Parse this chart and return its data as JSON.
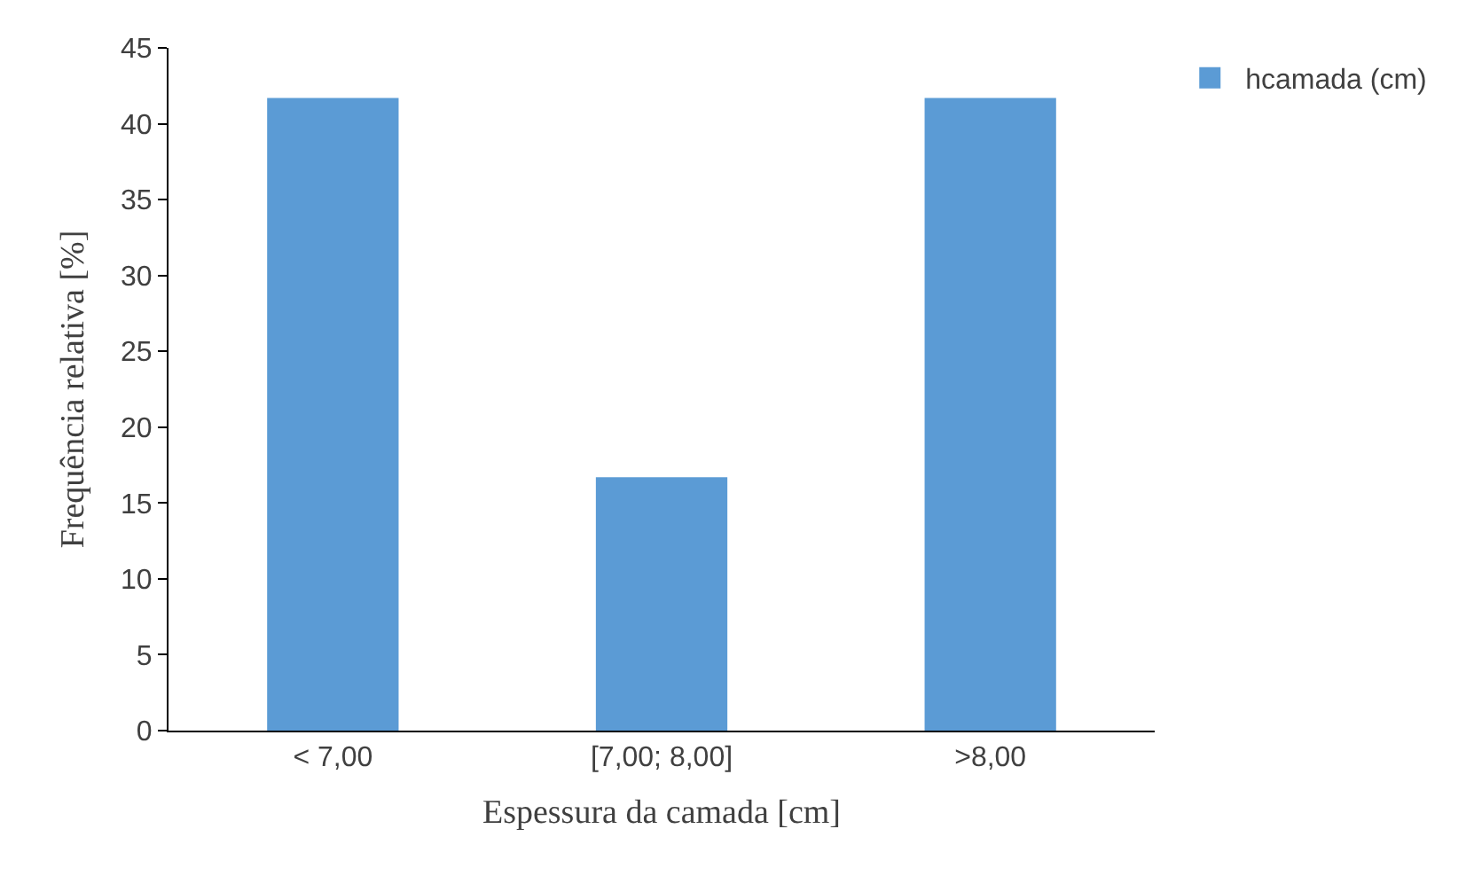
{
  "chart_data": {
    "type": "bar",
    "xlabel": "Espessura da camada [cm]",
    "ylabel": "Frequência relativa [%]",
    "categories": [
      "< 7,00",
      "[7,00; 8,00]",
      ">8,00"
    ],
    "series": [
      {
        "name": "hcamada (cm)",
        "color": "#5b9bd5",
        "values": [
          41.7,
          16.7,
          41.7
        ]
      }
    ],
    "ylim": [
      0,
      45
    ],
    "yticks": [
      0,
      5,
      10,
      15,
      20,
      25,
      30,
      35,
      40,
      45
    ],
    "legend": "top right"
  }
}
